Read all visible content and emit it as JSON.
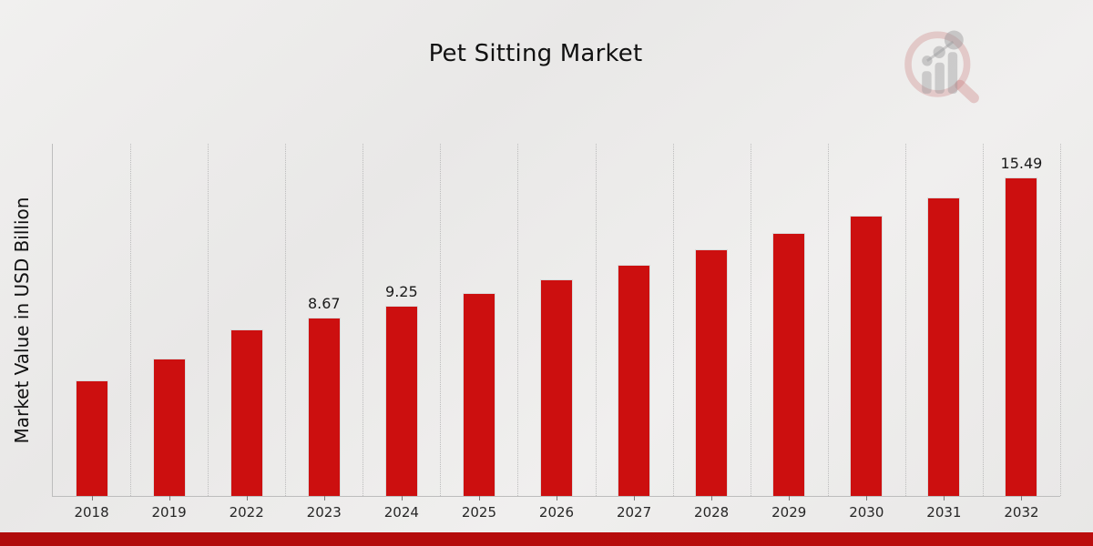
{
  "title": "Pet Sitting Market",
  "y_axis_title": "Market Value in USD Billion",
  "chart_data": {
    "type": "bar",
    "title": "Pet Sitting Market",
    "xlabel": "",
    "ylabel": "Market Value in USD Billion",
    "categories": [
      "2018",
      "2019",
      "2022",
      "2023",
      "2024",
      "2025",
      "2026",
      "2027",
      "2028",
      "2029",
      "2030",
      "2031",
      "2032"
    ],
    "values": [
      5.64,
      6.68,
      8.12,
      8.67,
      9.25,
      9.87,
      10.53,
      11.23,
      11.98,
      12.78,
      13.63,
      14.54,
      15.49
    ],
    "point_labels": [
      "",
      "",
      "",
      "8.67",
      "9.25",
      "",
      "",
      "",
      "",
      "",
      "",
      "",
      "15.49"
    ],
    "ylim": [
      0,
      17.13
    ],
    "grid": "vertical-dotted",
    "legend": "none",
    "bar_color": "#cc0f0f"
  },
  "colors": {
    "bar": "#cc0f0f",
    "footer_strip": "#b50d0d",
    "gridline": "#bcbcbc",
    "axis": "#bdbdbd",
    "text": "#1a1a1a"
  },
  "icons": {
    "watermark": "magnifier-bar-chart-logo"
  }
}
